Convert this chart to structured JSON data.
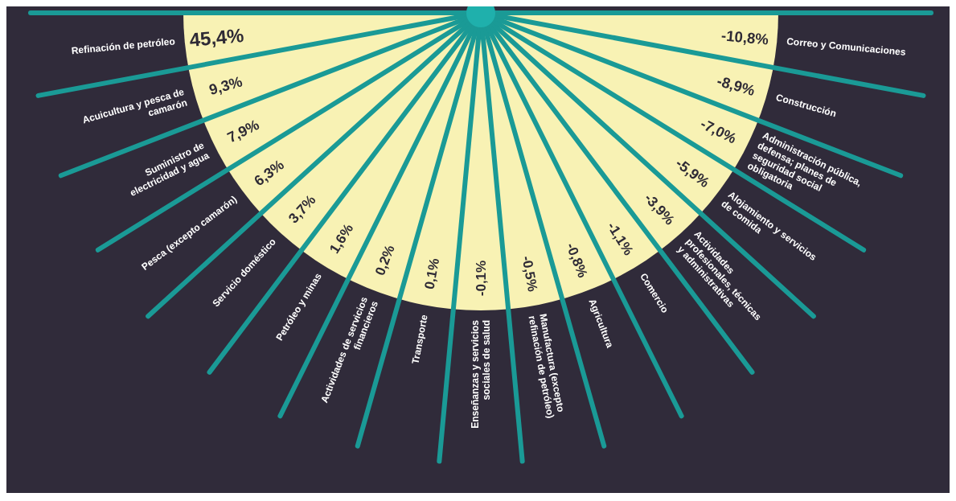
{
  "chart_data": {
    "type": "other",
    "color": "#f8f2b4",
    "categories": [
      "Refinación de petróleo",
      "Acuicultura y pesca de camarón",
      "Suministro de electricidad y agua",
      "Pesca (excepto camarón)",
      "Servicio doméstico",
      "Petróleo y minas",
      "Actividades de servicios financieros",
      "Transporte",
      "Enseñanzas y servicios sociales de salud",
      "Manufactura (excepto refinación de petróleo)",
      "Agricultura",
      "Comercio",
      "Actividades profesionales, técnicas y administrativas",
      "Alojamiento y servicios de comida",
      "Administración pública, defensa; planes de seguridad social obligatoria",
      "Construcción",
      "Correo y Comunicaciones"
    ],
    "values": [
      45.4,
      9.3,
      7.9,
      6.3,
      3.7,
      1.6,
      0.2,
      0.1,
      -0.1,
      -0.5,
      -0.8,
      -1.1,
      -3.9,
      -5.9,
      -7.0,
      -8.9,
      -10.8
    ],
    "value_labels": [
      "45,4%",
      "9,3%",
      "7,9%",
      "6,3%",
      "3,7%",
      "1,6%",
      "0,2%",
      "0,1%",
      "-0,1%",
      "-0,5%",
      "-0,8%",
      "-1,1%",
      "-3,9%",
      "-5,9%",
      "-7,0%",
      "-8,9%",
      "-10,8%"
    ]
  }
}
